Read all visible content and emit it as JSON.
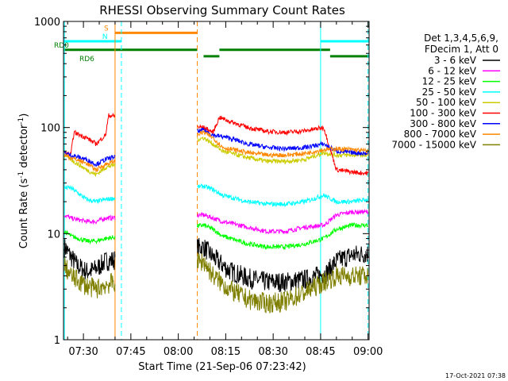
{
  "chart_data": {
    "type": "line",
    "title": "RHESSI Observing Summary Count Rates",
    "xlabel": "Start Time (21-Sep-06 07:23:42)",
    "ylabel_main": "Count Rate (s",
    "ylabel_sup1": "-1",
    "ylabel_mid": " detector",
    "ylabel_sup2": "-1",
    "ylabel_end": ")",
    "yscale": "log",
    "ylim": [
      1,
      1000
    ],
    "xlim": [
      "07:23:42",
      "09:00:20"
    ],
    "x_ticks": [
      "07:30",
      "07:45",
      "08:00",
      "08:15",
      "08:30",
      "08:45",
      "09:00"
    ],
    "y_ticks": [
      "1",
      "10",
      "100",
      "1000"
    ],
    "footer_date": "17-Oct-2021 07:38",
    "legend": {
      "header1": "Det 1,3,4,5,6,9,",
      "header2": "FDecim 1, Att 0",
      "placement": "right"
    },
    "series": [
      {
        "name": "3 - 6 keV",
        "color": "#000000",
        "values": [
          [
            "07:24",
            7.5
          ],
          [
            "07:28",
            5.0
          ],
          [
            "07:31",
            4.4
          ],
          [
            "07:33",
            4.5
          ],
          [
            "07:35",
            4.9
          ],
          [
            "07:37",
            5.5
          ],
          [
            "08:08",
            7.5
          ],
          [
            "08:11",
            6.0
          ],
          [
            "08:16",
            4.5
          ],
          [
            "08:22",
            3.8
          ],
          [
            "08:28",
            3.5
          ],
          [
            "08:34",
            3.5
          ],
          [
            "08:40",
            3.7
          ],
          [
            "08:44",
            4.0
          ],
          [
            "08:47",
            4.3
          ],
          [
            "08:50",
            5.5
          ],
          [
            "08:55",
            6.3
          ],
          [
            "09:00",
            6.5
          ]
        ]
      },
      {
        "name": "6 - 12 keV",
        "color": "#ff00ff",
        "values": [
          [
            "07:24",
            15
          ],
          [
            "07:26",
            14
          ],
          [
            "07:31",
            13
          ],
          [
            "07:34",
            13
          ],
          [
            "07:37",
            14
          ],
          [
            "08:08",
            15
          ],
          [
            "08:11",
            14
          ],
          [
            "08:14",
            13
          ],
          [
            "08:22",
            11.5
          ],
          [
            "08:28",
            10.5
          ],
          [
            "08:34",
            10.5
          ],
          [
            "08:40",
            11.5
          ],
          [
            "08:46",
            12
          ],
          [
            "08:50",
            15
          ],
          [
            "08:55",
            16
          ],
          [
            "09:00",
            16
          ]
        ]
      },
      {
        "name": "12 - 25 keV",
        "color": "#00ff00",
        "values": [
          [
            "07:24",
            10.5
          ],
          [
            "07:26",
            9.5
          ],
          [
            "07:31",
            8.5
          ],
          [
            "07:34",
            8.5
          ],
          [
            "07:37",
            9.0
          ],
          [
            "08:08",
            12
          ],
          [
            "08:11",
            11
          ],
          [
            "08:14",
            9.5
          ],
          [
            "08:22",
            8.0
          ],
          [
            "08:28",
            7.5
          ],
          [
            "08:34",
            7.5
          ],
          [
            "08:40",
            8.0
          ],
          [
            "08:46",
            9.0
          ],
          [
            "08:50",
            11
          ],
          [
            "08:55",
            12
          ],
          [
            "09:00",
            12
          ]
        ]
      },
      {
        "name": "25 - 50 keV",
        "color": "#00ffff",
        "values": [
          [
            "07:24",
            27
          ],
          [
            "07:26",
            27
          ],
          [
            "07:31",
            21
          ],
          [
            "07:34",
            20
          ],
          [
            "07:37",
            21
          ],
          [
            "08:08",
            28
          ],
          [
            "08:11",
            26
          ],
          [
            "08:14",
            23
          ],
          [
            "08:22",
            20
          ],
          [
            "08:28",
            19
          ],
          [
            "08:34",
            19
          ],
          [
            "08:40",
            20
          ],
          [
            "08:46",
            23
          ],
          [
            "08:50",
            20
          ],
          [
            "08:55",
            20
          ],
          [
            "09:00",
            21
          ]
        ]
      },
      {
        "name": "50 - 100 keV",
        "color": "#cccc00",
        "values": [
          [
            "07:24",
            55
          ],
          [
            "07:26",
            50
          ],
          [
            "07:31",
            40
          ],
          [
            "07:34",
            36
          ],
          [
            "07:37",
            42
          ],
          [
            "08:08",
            80
          ],
          [
            "08:11",
            70
          ],
          [
            "08:14",
            60
          ],
          [
            "08:22",
            52
          ],
          [
            "08:28",
            48
          ],
          [
            "08:34",
            48
          ],
          [
            "08:40",
            50
          ],
          [
            "08:46",
            58
          ],
          [
            "08:50",
            55
          ],
          [
            "08:55",
            55
          ],
          [
            "09:00",
            55
          ]
        ]
      },
      {
        "name": "100 - 300 keV",
        "color": "#ff0000",
        "values": [
          [
            "07:24",
            58
          ],
          [
            "07:26",
            55
          ],
          [
            "07:27",
            90
          ],
          [
            "07:31",
            80
          ],
          [
            "07:34",
            70
          ],
          [
            "07:37",
            85
          ],
          [
            "07:38",
            130
          ],
          [
            "08:08",
            100
          ],
          [
            "08:11",
            90
          ],
          [
            "08:13",
            125
          ],
          [
            "08:16",
            115
          ],
          [
            "08:22",
            100
          ],
          [
            "08:28",
            92
          ],
          [
            "08:34",
            90
          ],
          [
            "08:40",
            93
          ],
          [
            "08:46",
            100
          ],
          [
            "08:50",
            40
          ],
          [
            "08:55",
            38
          ],
          [
            "09:00",
            37
          ]
        ]
      },
      {
        "name": "300 - 800 keV",
        "color": "#0000ff",
        "values": [
          [
            "07:24",
            58
          ],
          [
            "07:26",
            55
          ],
          [
            "07:31",
            50
          ],
          [
            "07:34",
            45
          ],
          [
            "07:37",
            50
          ],
          [
            "08:08",
            95
          ],
          [
            "08:11",
            85
          ],
          [
            "08:16",
            80
          ],
          [
            "08:22",
            70
          ],
          [
            "08:28",
            65
          ],
          [
            "08:34",
            63
          ],
          [
            "08:40",
            65
          ],
          [
            "08:46",
            70
          ],
          [
            "08:50",
            60
          ],
          [
            "08:55",
            58
          ],
          [
            "09:00",
            57
          ]
        ]
      },
      {
        "name": "800 - 7000 keV",
        "color": "#ff8800",
        "values": [
          [
            "07:24",
            55
          ],
          [
            "07:26",
            52
          ],
          [
            "07:31",
            46
          ],
          [
            "07:34",
            40
          ],
          [
            "07:37",
            45
          ],
          [
            "08:08",
            90
          ],
          [
            "08:11",
            80
          ],
          [
            "08:14",
            65
          ],
          [
            "08:22",
            58
          ],
          [
            "08:28",
            55
          ],
          [
            "08:34",
            55
          ],
          [
            "08:40",
            57
          ],
          [
            "08:46",
            62
          ],
          [
            "08:50",
            63
          ],
          [
            "08:55",
            62
          ],
          [
            "09:00",
            60
          ]
        ]
      },
      {
        "name": "7000 - 15000 keV",
        "color": "#808000",
        "values": [
          [
            "07:24",
            5.0
          ],
          [
            "07:26",
            4.0
          ],
          [
            "07:31",
            3.2
          ],
          [
            "07:34",
            3.0
          ],
          [
            "07:37",
            3.3
          ],
          [
            "08:08",
            5.5
          ],
          [
            "08:11",
            4.0
          ],
          [
            "08:16",
            3.0
          ],
          [
            "08:22",
            2.4
          ],
          [
            "08:28",
            2.2
          ],
          [
            "08:34",
            2.3
          ],
          [
            "08:40",
            2.8
          ],
          [
            "08:46",
            3.5
          ],
          [
            "08:50",
            4.0
          ],
          [
            "08:55",
            4.0
          ],
          [
            "09:00",
            4.0
          ]
        ]
      }
    ],
    "flags": [
      {
        "label": "S",
        "color": "#ff8800",
        "y": 780,
        "segments": [
          [
            "07:40",
            "08:06"
          ]
        ]
      },
      {
        "label": "N",
        "color": "#00ffff",
        "y": 650,
        "segments": [
          [
            "07:23:42",
            "07:42"
          ],
          [
            "08:45",
            "09:00:20"
          ]
        ]
      },
      {
        "label": "RD0",
        "color": "#008000",
        "y": 540,
        "segments": [
          [
            "07:23:42",
            "08:06"
          ],
          [
            "08:13",
            "08:48"
          ]
        ]
      },
      {
        "label": "RD6",
        "color": "#008000",
        "y": 470,
        "segments": [
          [
            "08:08",
            "08:13"
          ],
          [
            "08:48",
            "09:00:20"
          ]
        ]
      }
    ],
    "vlines": [
      {
        "x": "07:24",
        "color": "#00ffff",
        "style": "solid"
      },
      {
        "x": "07:40",
        "color": "#ff8800",
        "style": "solid"
      },
      {
        "x": "07:42",
        "color": "#00ffff",
        "style": "dashed"
      },
      {
        "x": "08:06",
        "color": "#ff8800",
        "style": "dashed"
      },
      {
        "x": "08:45",
        "color": "#00ffff",
        "style": "solid"
      },
      {
        "x": "09:00",
        "color": "#00ffff",
        "style": "dashed"
      }
    ],
    "gaps": [
      [
        "07:40",
        "08:06"
      ]
    ]
  }
}
